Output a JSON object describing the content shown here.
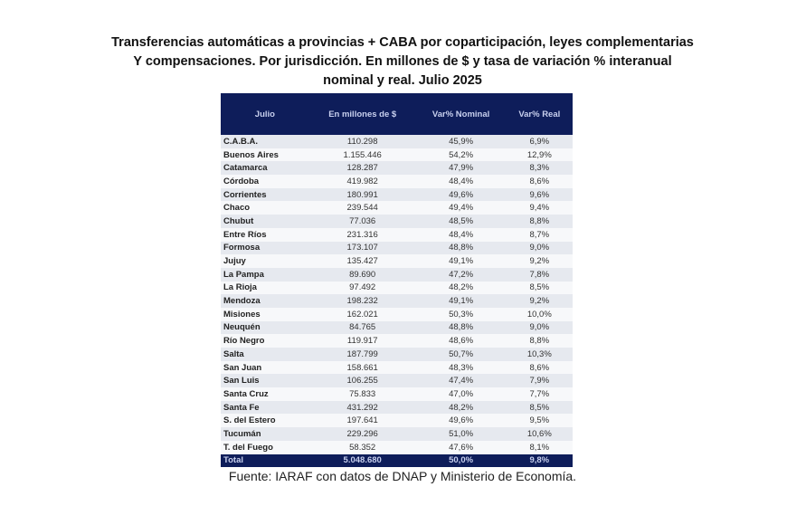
{
  "title": [
    "Transferencias automáticas  a provincias + CABA por coparticipación,  leyes complementarias",
    "Y compensaciones.  Por jurisdicción.  En millones de $ y tasa de variación % interanual",
    "nominal y real.  Julio 2025"
  ],
  "headers": [
    "Julio",
    "En millones de $",
    "Var% Nominal",
    "Var% Real"
  ],
  "rows": [
    [
      "C.A.B.A.",
      "110.298",
      "45,9%",
      "6,9%"
    ],
    [
      "Buenos Aires",
      "1.155.446",
      "54,2%",
      "12,9%"
    ],
    [
      "Catamarca",
      "128.287",
      "47,9%",
      "8,3%"
    ],
    [
      "Córdoba",
      "419.982",
      "48,4%",
      "8,6%"
    ],
    [
      "Corrientes",
      "180.991",
      "49,6%",
      "9,6%"
    ],
    [
      "Chaco",
      "239.544",
      "49,4%",
      "9,4%"
    ],
    [
      "Chubut",
      "77.036",
      "48,5%",
      "8,8%"
    ],
    [
      "Entre Ríos",
      "231.316",
      "48,4%",
      "8,7%"
    ],
    [
      "Formosa",
      "173.107",
      "48,8%",
      "9,0%"
    ],
    [
      "Jujuy",
      "135.427",
      "49,1%",
      "9,2%"
    ],
    [
      "La Pampa",
      "89.690",
      "47,2%",
      "7,8%"
    ],
    [
      "La Rioja",
      "97.492",
      "48,2%",
      "8,5%"
    ],
    [
      "Mendoza",
      "198.232",
      "49,1%",
      "9,2%"
    ],
    [
      "Misiones",
      "162.021",
      "50,3%",
      "10,0%"
    ],
    [
      "Neuquén",
      "84.765",
      "48,8%",
      "9,0%"
    ],
    [
      "Río Negro",
      "119.917",
      "48,6%",
      "8,8%"
    ],
    [
      "Salta",
      "187.799",
      "50,7%",
      "10,3%"
    ],
    [
      "San Juan",
      "158.661",
      "48,3%",
      "8,6%"
    ],
    [
      "San Luis",
      "106.255",
      "47,4%",
      "7,9%"
    ],
    [
      "Santa Cruz",
      "75.833",
      "47,0%",
      "7,7%"
    ],
    [
      "Santa Fe",
      "431.292",
      "48,2%",
      "8,5%"
    ],
    [
      "S. del Estero",
      "197.641",
      "49,6%",
      "9,5%"
    ],
    [
      "Tucumán",
      "229.296",
      "51,0%",
      "10,6%"
    ],
    [
      "T. del Fuego",
      "58.352",
      "47,6%",
      "8,1%"
    ]
  ],
  "total": [
    "Total",
    "5.048.680",
    "50,0%",
    "9,8%"
  ],
  "source": "Fuente: IARAF con datos de DNAP y Ministerio de Economía.",
  "colors": {
    "header": "#0e1d5a",
    "stripe": "#e6e9ef"
  }
}
